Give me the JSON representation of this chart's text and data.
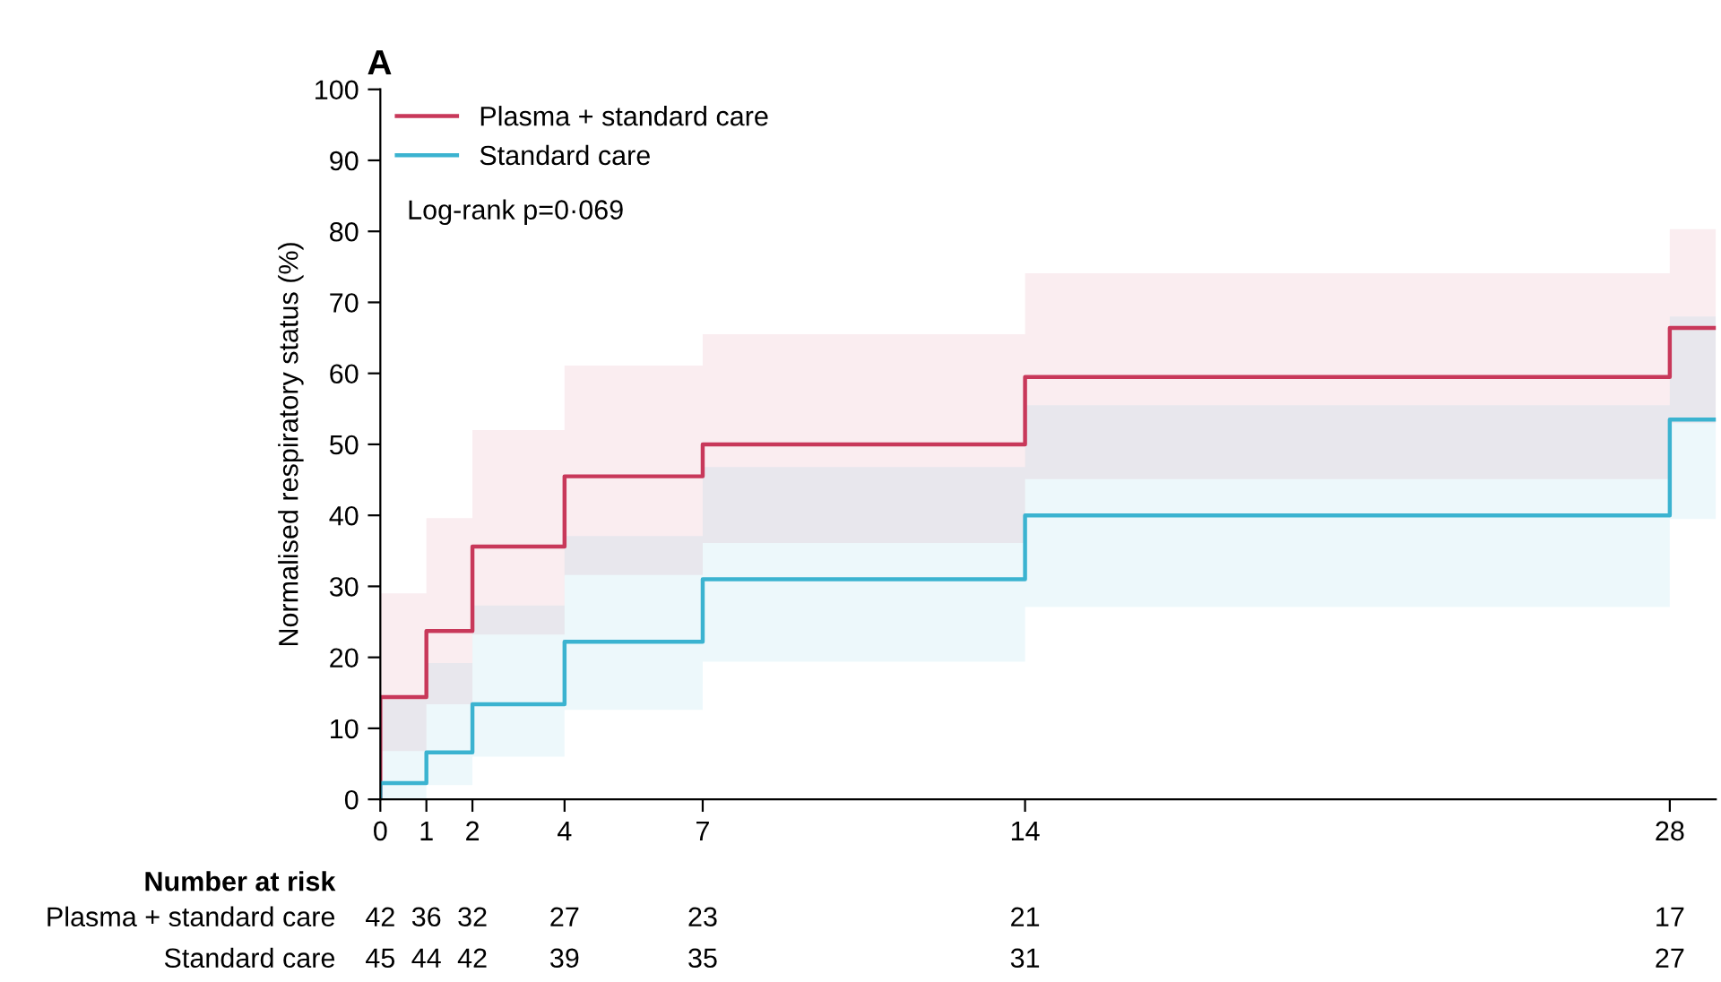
{
  "chart_data": {
    "type": "step",
    "title": "A",
    "ylabel": "Normalised respiratory status (%)",
    "x": [
      0,
      0,
      1,
      2,
      4,
      7,
      14,
      28,
      29
    ],
    "series": [
      {
        "name": "Plasma + standard care",
        "color": "#c8385a",
        "values": [
          0,
          14.4,
          23.7,
          35.6,
          45.5,
          50,
          59.5,
          66.4,
          66.4
        ],
        "lower": [
          null,
          6.8,
          13.4,
          23.2,
          31.6,
          36.1,
          45.1,
          53,
          53
        ],
        "upper": [
          null,
          29,
          39.6,
          52,
          61.1,
          65.5,
          74.1,
          80.3,
          80.3
        ]
      },
      {
        "name": "Standard care",
        "color": "#3bb3d0",
        "values": [
          0,
          2.3,
          6.6,
          13.4,
          22.2,
          31,
          40,
          53.5,
          53.5
        ],
        "lower": [
          null,
          0,
          2,
          6,
          12.6,
          19.4,
          27.1,
          39.5,
          39.5
        ],
        "upper": [
          null,
          14.1,
          19.2,
          27.3,
          37.1,
          46.8,
          55.5,
          68,
          68
        ]
      }
    ],
    "xlim": [
      0,
      29
    ],
    "xticks": [
      0,
      1,
      2,
      4,
      7,
      14,
      28
    ],
    "ylim": [
      0,
      100
    ],
    "yticks": [
      0,
      10,
      20,
      30,
      40,
      50,
      60,
      70,
      80,
      90,
      100
    ],
    "grid": false,
    "legend": "top left",
    "marker": "none",
    "line_style": "solid",
    "annotations": [
      "Log-rank p=0·069",
      "Number at risk",
      "Plasma + standard care",
      "42",
      "36",
      "32",
      "27",
      "23",
      "21",
      "17",
      "Standard care",
      "45",
      "44",
      "42",
      "39",
      "35",
      "31",
      "27"
    ]
  }
}
